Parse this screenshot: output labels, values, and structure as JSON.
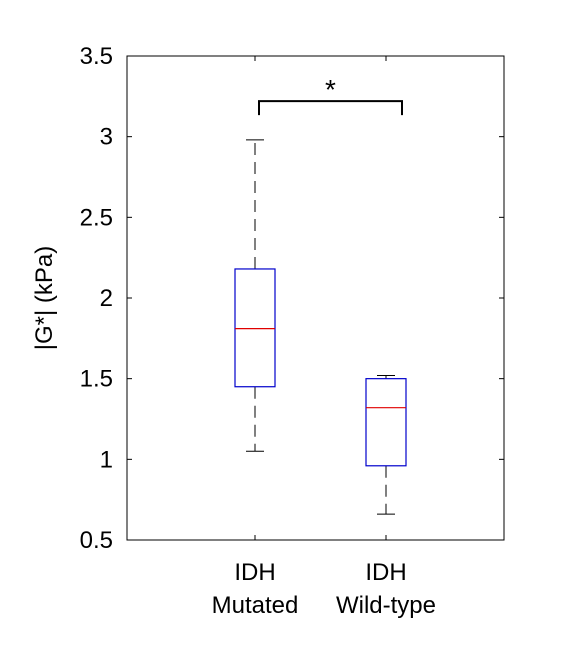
{
  "chart_data": {
    "type": "box",
    "title": "",
    "xlabel": "",
    "ylabel": "|G*| (kPa)",
    "ylim": [
      0.5,
      3.5
    ],
    "yticks": [
      "0.5",
      "1",
      "1.5",
      "2",
      "2.5",
      "3",
      "3.5"
    ],
    "grid": false,
    "categories": [
      {
        "line1": "IDH",
        "line2": "Mutated"
      },
      {
        "line1": "IDH",
        "line2": "Wild-type"
      }
    ],
    "boxes": [
      {
        "whisker_low": 1.05,
        "q1": 1.45,
        "median": 1.81,
        "q3": 2.18,
        "whisker_high": 2.98
      },
      {
        "whisker_low": 0.66,
        "q1": 0.96,
        "median": 1.32,
        "q3": 1.5,
        "whisker_high": 1.52
      }
    ],
    "significance": {
      "label": "*",
      "y": 3.22,
      "between": [
        0,
        1
      ]
    },
    "colors": {
      "box": "#0000cc",
      "median": "#e00000",
      "whisker": "#000000",
      "axis": "#000000"
    }
  }
}
